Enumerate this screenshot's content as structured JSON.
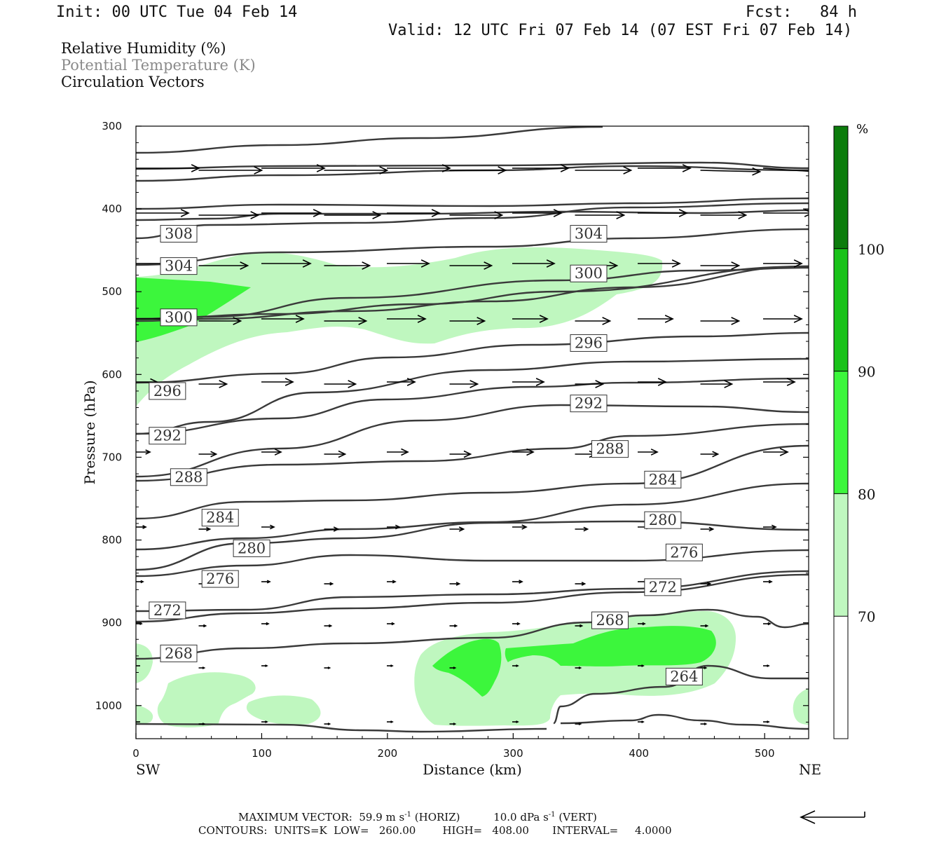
{
  "header": {
    "init": "Init: 00 UTC Tue 04 Feb 14",
    "fcst": "Fcst:   84 h",
    "valid": "Valid: 12 UTC Fri 07 Feb 14 (07 EST Fri 07 Feb 14)"
  },
  "legend": {
    "rh": "Relative Humidity (%)",
    "theta": "Potential Temperature (K)",
    "vectors": "Circulation Vectors"
  },
  "footer": {
    "max_vector": "MAXIMUM VECTOR:  59.9 m s",
    "max_vector_tail": "(HORIZ)",
    "vert": "10.0 dPa s",
    "vert_tail": "(VERT)",
    "sup": "-1",
    "contours": "CONTOURS:  UNITS=K  LOW=   260.00        HIGH=   408.00       INTERVAL=     4.0000"
  },
  "colors": {
    "rh70": "#bff7bf",
    "rh80": "#3cf63c",
    "rh90": "#19c219",
    "rh100": "#0c7c0c",
    "contour": "#3a3a3a"
  },
  "chart_data": {
    "type": "cross-section",
    "xlabel": "Distance (km)",
    "ylabel": "Pressure (hPa)",
    "xlim": [
      0,
      535
    ],
    "ylim": [
      1040,
      300
    ],
    "x_ticks": [
      0,
      100,
      200,
      300,
      400,
      500
    ],
    "y_ticks": [
      300,
      400,
      500,
      600,
      700,
      800,
      900,
      1000
    ],
    "x_end_labels": {
      "left": "SW",
      "right": "NE"
    },
    "colorbar": {
      "unit": "%",
      "levels": [
        70,
        80,
        90,
        100
      ],
      "colors": [
        "#ffffff",
        "#bff7bf",
        "#3cf63c",
        "#19c219",
        "#0c7c0c"
      ]
    },
    "contour_labels": [
      {
        "value": "308",
        "x": 34,
        "p": 430
      },
      {
        "value": "304",
        "x": 34,
        "p": 469
      },
      {
        "value": "300",
        "x": 34,
        "p": 531
      },
      {
        "value": "296",
        "x": 25,
        "p": 620
      },
      {
        "value": "292",
        "x": 25,
        "p": 674
      },
      {
        "value": "288",
        "x": 42,
        "p": 724
      },
      {
        "value": "284",
        "x": 67,
        "p": 773
      },
      {
        "value": "280",
        "x": 92,
        "p": 810
      },
      {
        "value": "276",
        "x": 67,
        "p": 847
      },
      {
        "value": "272",
        "x": 25,
        "p": 885
      },
      {
        "value": "268",
        "x": 34,
        "p": 937
      },
      {
        "value": "304",
        "x": 360,
        "p": 430
      },
      {
        "value": "300",
        "x": 360,
        "p": 478
      },
      {
        "value": "296",
        "x": 360,
        "p": 562
      },
      {
        "value": "292",
        "x": 360,
        "p": 635
      },
      {
        "value": "288",
        "x": 377,
        "p": 690
      },
      {
        "value": "284",
        "x": 419,
        "p": 727
      },
      {
        "value": "280",
        "x": 419,
        "p": 776
      },
      {
        "value": "276",
        "x": 436,
        "p": 815
      },
      {
        "value": "272",
        "x": 419,
        "p": 857
      },
      {
        "value": "268",
        "x": 377,
        "p": 897
      },
      {
        "value": "264",
        "x": 436,
        "p": 965
      }
    ]
  }
}
